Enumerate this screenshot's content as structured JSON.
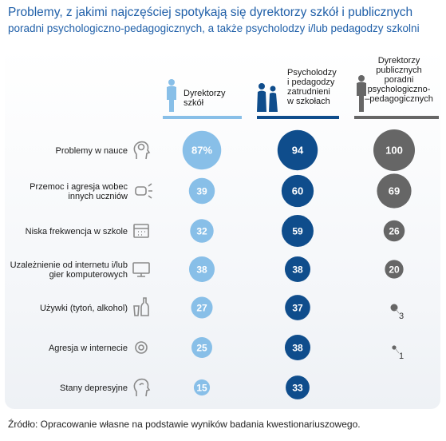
{
  "title_line1": "Problemy, z jakimi najczęściej spotykają się dyrektorzy szkół i publicznych",
  "title_line2": "poradni psychologiczno-pedagogicznych, a także psycholodzy i/lub pedagodzy szkolni",
  "source": "Źródło: Opracowanie własne na podstawie wyników badania kwestionariuszowego.",
  "colors": {
    "light": "#88bfe8",
    "dark": "#0f4d8c",
    "grey": "#666666",
    "title": "#1f5fa8"
  },
  "chart_data": {
    "type": "bubble",
    "columns": [
      {
        "label_lines": [
          "Dyrektorzy",
          "szkół"
        ],
        "icon": "person-icon",
        "color": "#88bfe8"
      },
      {
        "label_lines": [
          "Psycholodzy",
          "i pedagodzy",
          "zatrudnieni",
          "w szkołach"
        ],
        "icon": "people-icon",
        "color": "#0f4d8c"
      },
      {
        "label_lines": [
          "Dyrektorzy",
          "publicznych",
          "poradni",
          "psychologiczno-",
          "–pedagogicznych"
        ],
        "icon": "person-icon",
        "color": "#666666"
      }
    ],
    "rows": [
      {
        "label_lines": [
          "Problemy w nauce"
        ],
        "icon": "head-brain-icon",
        "values": [
          "87%",
          "94",
          "100"
        ]
      },
      {
        "label_lines": [
          "Przemoc i agresja wobec",
          "innych uczniów"
        ],
        "icon": "fist-icon",
        "values": [
          "39",
          "60",
          "69"
        ]
      },
      {
        "label_lines": [
          "Niska frekwencja w szkole"
        ],
        "icon": "calendar-icon",
        "values": [
          "32",
          "59",
          "26"
        ]
      },
      {
        "label_lines": [
          "Uzależnienie od internetu i/lub",
          "gier komputerowych"
        ],
        "icon": "monitor-icon",
        "values": [
          "38",
          "38",
          "20"
        ]
      },
      {
        "label_lines": [
          "Używki (tytoń, alkohol)"
        ],
        "icon": "bottle-glass-icon",
        "values": [
          "27",
          "37",
          "3"
        ]
      },
      {
        "label_lines": [
          "Agresja w internecie"
        ],
        "icon": "at-icon",
        "values": [
          "25",
          "38",
          "1"
        ]
      },
      {
        "label_lines": [
          "Stany depresyjne"
        ],
        "icon": "sad-head-icon",
        "values": [
          "15",
          "33",
          null
        ]
      }
    ]
  }
}
